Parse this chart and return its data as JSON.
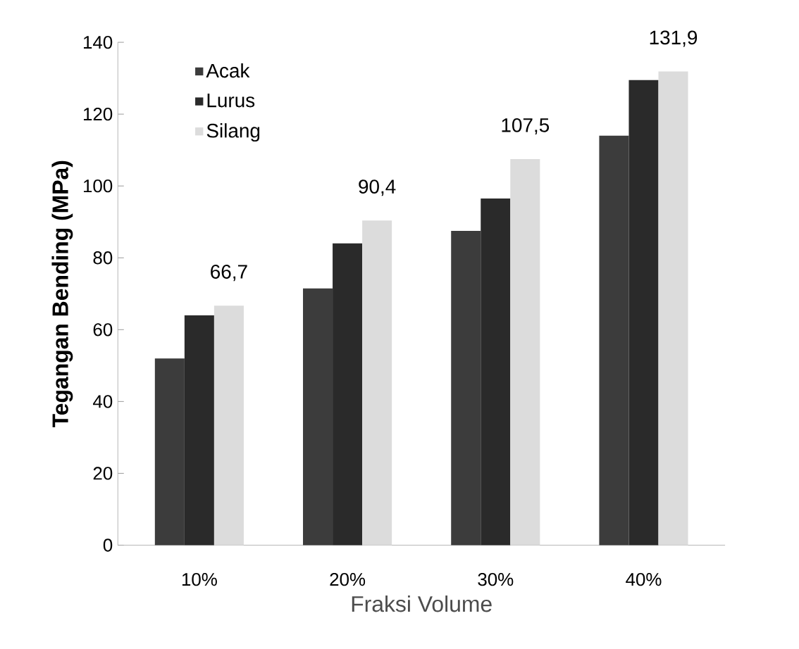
{
  "chart_data": {
    "type": "bar",
    "xlabel": "Fraksi Volume",
    "ylabel": "Tegangan Bending (MPa)",
    "categories": [
      "10%",
      "20%",
      "30%",
      "40%"
    ],
    "series": [
      {
        "name": "Acak",
        "color": "#3c3c3c",
        "values": [
          52,
          71.5,
          87.5,
          114
        ]
      },
      {
        "name": "Lurus",
        "color": "#2a2a2a",
        "values": [
          64,
          84,
          96.5,
          129.5
        ]
      },
      {
        "name": "Silang",
        "color": "#dcdcdc",
        "values": [
          66.7,
          90.4,
          107.5,
          131.9
        ],
        "value_labels": [
          "66,7",
          "90,4",
          "107,5",
          "131,9"
        ]
      }
    ],
    "ylim": [
      0,
      140
    ],
    "yticks": [
      0,
      20,
      40,
      60,
      80,
      100,
      120,
      140
    ],
    "legend": "top left"
  }
}
